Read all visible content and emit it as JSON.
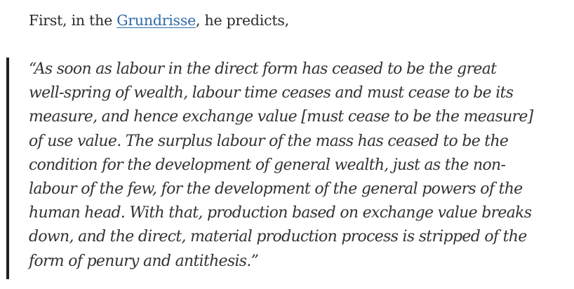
{
  "intro": {
    "before": "First, in the ",
    "link": "Grundrisse",
    "after": ", he predicts,"
  },
  "quote": {
    "lines": [
      "“As soon as labour in the direct form has ceased to be the great",
      "well-spring of wealth, labour time ceases and must cease to be its",
      "measure, and hence exchange value [must cease to be the measure]",
      "of use value. The surplus labour of the mass has ceased to be the",
      "condition for the development of general wealth, just as the non-",
      "labour of the few, for the development of the general powers of the",
      "human head. With that, production based on exchange value breaks",
      "down, and the direct, material production process is stripped of the",
      "form of penury and antithesis.”"
    ]
  }
}
